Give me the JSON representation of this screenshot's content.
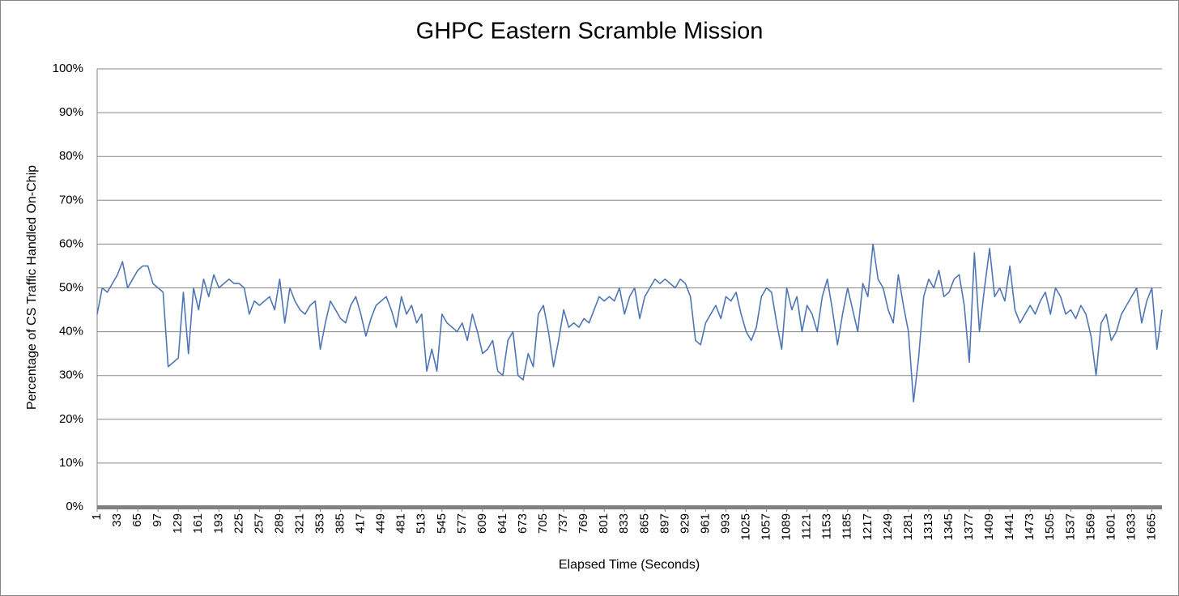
{
  "chart_data": {
    "type": "line",
    "title": "GHPC Eastern Scramble Mission",
    "x_label": "Elapsed Time (Seconds)",
    "y_label": "Percentage of CS Traffic Handled On-Chip",
    "color": "#4f76b4",
    "grid": true,
    "xlim": [
      1,
      1681
    ],
    "xticks": [
      1,
      33,
      65,
      97,
      129,
      161,
      193,
      225,
      257,
      289,
      321,
      353,
      385,
      417,
      449,
      481,
      513,
      545,
      577,
      609,
      641,
      673,
      705,
      737,
      769,
      801,
      833,
      865,
      897,
      929,
      961,
      993,
      1025,
      1057,
      1089,
      1121,
      1153,
      1185,
      1217,
      1249,
      1281,
      1313,
      1345,
      1377,
      1409,
      1441,
      1473,
      1505,
      1537,
      1569,
      1601,
      1633,
      1665
    ],
    "ylim": [
      0,
      100
    ],
    "yticks": [
      {
        "value": 0,
        "label": "0%"
      },
      {
        "value": 10,
        "label": "10%"
      },
      {
        "value": 20,
        "label": "20%"
      },
      {
        "value": 30,
        "label": "30%"
      },
      {
        "value": 40,
        "label": "40%"
      },
      {
        "value": 50,
        "label": "50%"
      },
      {
        "value": 60,
        "label": "60%"
      },
      {
        "value": 70,
        "label": "70%"
      },
      {
        "value": 80,
        "label": "80%"
      },
      {
        "value": 90,
        "label": "90%"
      },
      {
        "value": 100,
        "label": "100%"
      }
    ],
    "x": [
      1,
      9,
      17,
      25,
      33,
      41,
      49,
      57,
      65,
      73,
      81,
      89,
      97,
      105,
      113,
      121,
      129,
      137,
      145,
      153,
      161,
      169,
      177,
      185,
      193,
      201,
      209,
      217,
      225,
      233,
      241,
      249,
      257,
      265,
      273,
      281,
      289,
      297,
      305,
      313,
      321,
      329,
      337,
      345,
      353,
      361,
      369,
      377,
      385,
      393,
      401,
      409,
      417,
      425,
      433,
      441,
      449,
      457,
      465,
      473,
      481,
      489,
      497,
      505,
      513,
      521,
      529,
      537,
      545,
      553,
      561,
      569,
      577,
      585,
      593,
      601,
      609,
      617,
      625,
      633,
      641,
      649,
      657,
      665,
      673,
      681,
      689,
      697,
      705,
      713,
      721,
      729,
      737,
      745,
      753,
      761,
      769,
      777,
      785,
      793,
      801,
      809,
      817,
      825,
      833,
      841,
      849,
      857,
      865,
      873,
      881,
      889,
      897,
      905,
      913,
      921,
      929,
      937,
      945,
      953,
      961,
      969,
      977,
      985,
      993,
      1001,
      1009,
      1017,
      1025,
      1033,
      1041,
      1049,
      1057,
      1065,
      1073,
      1081,
      1089,
      1097,
      1105,
      1113,
      1121,
      1129,
      1137,
      1145,
      1153,
      1161,
      1169,
      1177,
      1185,
      1193,
      1201,
      1209,
      1217,
      1225,
      1233,
      1241,
      1249,
      1257,
      1265,
      1273,
      1281,
      1289,
      1297,
      1305,
      1313,
      1321,
      1329,
      1337,
      1345,
      1353,
      1361,
      1369,
      1377,
      1385,
      1393,
      1401,
      1409,
      1417,
      1425,
      1433,
      1441,
      1449,
      1457,
      1465,
      1473,
      1481,
      1489,
      1497,
      1505,
      1513,
      1521,
      1529,
      1537,
      1545,
      1553,
      1561,
      1569,
      1577,
      1585,
      1593,
      1601,
      1609,
      1617,
      1625,
      1633,
      1641,
      1649,
      1657,
      1665,
      1673,
      1681
    ],
    "values": [
      44,
      50,
      49,
      51,
      53,
      56,
      50,
      52,
      54,
      55,
      55,
      51,
      50,
      49,
      32,
      33,
      34,
      49,
      35,
      50,
      45,
      52,
      48,
      53,
      50,
      51,
      52,
      51,
      51,
      50,
      44,
      47,
      46,
      47,
      48,
      45,
      52,
      42,
      50,
      47,
      45,
      44,
      46,
      47,
      36,
      42,
      47,
      45,
      43,
      42,
      46,
      48,
      44,
      39,
      43,
      46,
      47,
      48,
      45,
      41,
      48,
      44,
      46,
      42,
      44,
      31,
      36,
      31,
      44,
      42,
      41,
      40,
      42,
      38,
      44,
      40,
      35,
      36,
      38,
      31,
      30,
      38,
      40,
      30,
      29,
      35,
      32,
      44,
      46,
      40,
      32,
      38,
      45,
      41,
      42,
      41,
      43,
      42,
      45,
      48,
      47,
      48,
      47,
      50,
      44,
      48,
      50,
      43,
      48,
      50,
      52,
      51,
      52,
      51,
      50,
      52,
      51,
      48,
      38,
      37,
      42,
      44,
      46,
      43,
      48,
      47,
      49,
      44,
      40,
      38,
      41,
      48,
      50,
      49,
      42,
      36,
      50,
      45,
      48,
      40,
      46,
      44,
      40,
      48,
      52,
      45,
      37,
      44,
      50,
      45,
      40,
      51,
      48,
      60,
      52,
      50,
      45,
      42,
      53,
      46,
      40,
      24,
      34,
      48,
      52,
      50,
      54,
      48,
      49,
      52,
      53,
      46,
      33,
      58,
      40,
      50,
      59,
      48,
      50,
      47,
      55,
      45,
      42,
      44,
      46,
      44,
      47,
      49,
      44,
      50,
      48,
      44,
      45,
      43,
      46,
      44,
      39,
      30,
      42,
      44,
      38,
      40,
      44,
      46,
      48,
      50,
      42,
      47,
      50,
      36,
      45
    ]
  }
}
